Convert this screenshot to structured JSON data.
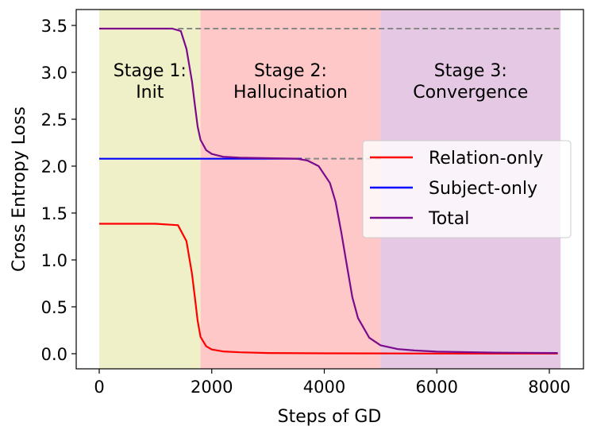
{
  "chart_data": {
    "type": "line",
    "title": "",
    "xlabel": "Steps of GD",
    "ylabel": "Cross Entropy Loss",
    "xlim": [
      -400,
      8600
    ],
    "ylim": [
      -0.17,
      3.62
    ],
    "xticks": [
      0,
      2000,
      4000,
      6000,
      8000
    ],
    "xtick_labels": [
      "0",
      "2000",
      "4000",
      "6000",
      "8000"
    ],
    "yticks": [
      0.0,
      0.5,
      1.0,
      1.5,
      2.0,
      2.5,
      3.0,
      3.5
    ],
    "ytick_labels": [
      "0.0",
      "0.5",
      "1.0",
      "1.5",
      "2.0",
      "2.5",
      "3.0",
      "3.5"
    ],
    "grid": false,
    "legend_position": "center right",
    "stages": [
      {
        "label_line1": "Stage 1:",
        "label_line2": "Init",
        "x_start": 0,
        "x_end": 1800,
        "color": "#f0f0c8"
      },
      {
        "label_line1": "Stage 2:",
        "label_line2": "Hallucination",
        "x_start": 1800,
        "x_end": 5000,
        "color": "#ffc8c8"
      },
      {
        "label_line1": "Stage 3:",
        "label_line2": "Convergence",
        "x_start": 5000,
        "x_end": 8200,
        "color": "#e4c8e4"
      }
    ],
    "reference_lines": [
      {
        "y": 3.466,
        "x_start": 1400,
        "x_end": 8200,
        "style": "dashed",
        "color": "#888888"
      },
      {
        "y": 2.079,
        "x_start": 3500,
        "x_end": 5000,
        "style": "dashed",
        "color": "#888888"
      }
    ],
    "series": [
      {
        "name": "Relation-only",
        "color": "#ff0000",
        "x": [
          0,
          1000,
          1400,
          1550,
          1650,
          1700,
          1750,
          1800,
          1900,
          2000,
          2200,
          2500,
          3000,
          4000,
          5000,
          6000,
          7000,
          8150
        ],
        "values": [
          1.386,
          1.386,
          1.37,
          1.2,
          0.85,
          0.6,
          0.35,
          0.18,
          0.08,
          0.045,
          0.025,
          0.015,
          0.008,
          0.004,
          0.003,
          0.002,
          0.002,
          0.002
        ]
      },
      {
        "name": "Subject-only",
        "color": "#0000ff",
        "x": [
          0,
          1000,
          2000,
          3000,
          3600
        ],
        "values": [
          2.079,
          2.079,
          2.079,
          2.079,
          2.079
        ]
      },
      {
        "name": "Total",
        "color": "#7b0a8c",
        "x": [
          0,
          1300,
          1450,
          1550,
          1650,
          1700,
          1750,
          1800,
          1900,
          2000,
          2200,
          2500,
          3000,
          3500,
          3700,
          3900,
          4100,
          4200,
          4300,
          4400,
          4500,
          4600,
          4800,
          5000,
          5300,
          5600,
          6000,
          7000,
          8150
        ],
        "values": [
          3.466,
          3.466,
          3.44,
          3.25,
          2.9,
          2.65,
          2.42,
          2.28,
          2.17,
          2.13,
          2.1,
          2.09,
          2.085,
          2.08,
          2.06,
          2.0,
          1.82,
          1.62,
          1.3,
          0.95,
          0.6,
          0.38,
          0.17,
          0.09,
          0.05,
          0.035,
          0.022,
          0.012,
          0.008
        ]
      }
    ]
  }
}
